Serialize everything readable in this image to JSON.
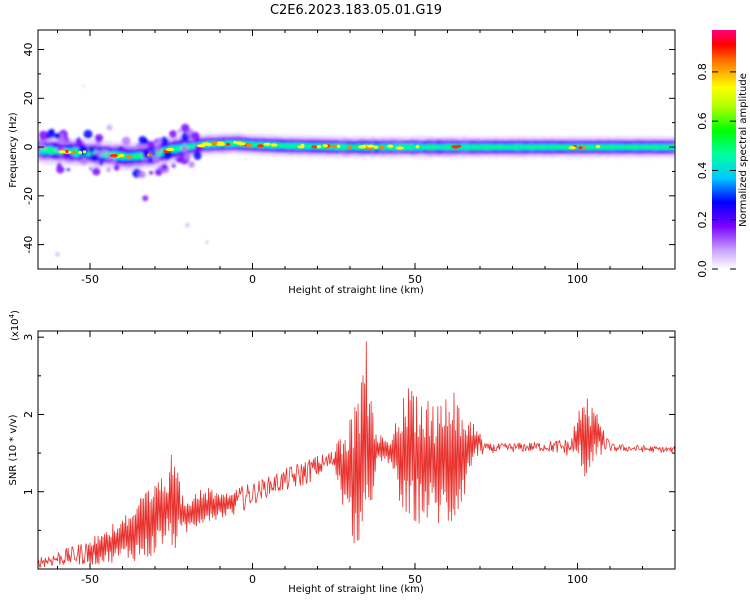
{
  "title": "C2E6.2023.183.05.01.G19",
  "chart_data": [
    {
      "type": "heatmap",
      "xlabel": "Height of straight line (km)",
      "ylabel": "Frequency (Hz)",
      "xlim": [
        -66,
        130
      ],
      "ylim": [
        -50,
        48
      ],
      "xticks": [
        -50,
        0,
        50,
        100
      ],
      "yticks": [
        -40,
        -20,
        0,
        20,
        40
      ],
      "ridge": [
        {
          "x": -66,
          "y": -1
        },
        {
          "x": -55,
          "y": -2
        },
        {
          "x": -45,
          "y": -3
        },
        {
          "x": -38,
          "y": -4
        },
        {
          "x": -30,
          "y": -3
        },
        {
          "x": -25,
          "y": -1
        },
        {
          "x": -15,
          "y": 1
        },
        {
          "x": -5,
          "y": 1.5
        },
        {
          "x": 0,
          "y": 1
        },
        {
          "x": 10,
          "y": 0.5
        },
        {
          "x": 30,
          "y": 0
        },
        {
          "x": 60,
          "y": 0
        },
        {
          "x": 100,
          "y": 0
        },
        {
          "x": 130,
          "y": 0
        }
      ],
      "colorbar": {
        "label": "Normalized spectral amplitude",
        "range": [
          0,
          0.97
        ],
        "ticks": [
          "0.0",
          "0.2",
          "0.4",
          "0.6",
          "0.8"
        ]
      }
    },
    {
      "type": "line",
      "xlabel": "Height of straight line (km)",
      "ylabel": "SNR (10 * v/v)",
      "y_scale_label": "(x10",
      "y_scale_exponent": "4",
      "y_scale_suffix": ")",
      "xlim": [
        -66,
        130
      ],
      "ylim": [
        0,
        3.08
      ],
      "xticks": [
        -50,
        0,
        50,
        100
      ],
      "yticks": [
        1,
        2,
        3
      ],
      "color": "#e8302c",
      "envelope": [
        {
          "x": -66,
          "low": 0.02,
          "high": 0.16
        },
        {
          "x": -55,
          "low": 0.05,
          "high": 0.3
        },
        {
          "x": -48,
          "low": 0.05,
          "high": 0.45
        },
        {
          "x": -40,
          "low": 0.1,
          "high": 0.7
        },
        {
          "x": -32,
          "low": 0.1,
          "high": 1.05
        },
        {
          "x": -26,
          "low": 0.35,
          "high": 1.25
        },
        {
          "x": -24,
          "low": 0.2,
          "high": 1.78
        },
        {
          "x": -22,
          "low": 0.4,
          "high": 0.95
        },
        {
          "x": -15,
          "low": 0.6,
          "high": 1.05
        },
        {
          "x": -5,
          "low": 0.7,
          "high": 1.05
        },
        {
          "x": 5,
          "low": 0.95,
          "high": 1.2
        },
        {
          "x": 15,
          "low": 1.05,
          "high": 1.4
        },
        {
          "x": 25,
          "low": 1.3,
          "high": 1.55
        },
        {
          "x": 30,
          "low": 0.4,
          "high": 1.95
        },
        {
          "x": 33,
          "low": 0.15,
          "high": 2.25
        },
        {
          "x": 35,
          "low": 0.05,
          "high": 3.05
        },
        {
          "x": 38,
          "low": 1.35,
          "high": 1.75
        },
        {
          "x": 43,
          "low": 1.3,
          "high": 1.75
        },
        {
          "x": 47,
          "low": 0.5,
          "high": 2.35
        },
        {
          "x": 52,
          "low": 0.6,
          "high": 2.3
        },
        {
          "x": 57,
          "low": 0.55,
          "high": 2.15
        },
        {
          "x": 61,
          "low": 0.45,
          "high": 2.6
        },
        {
          "x": 65,
          "low": 0.9,
          "high": 2.1
        },
        {
          "x": 68,
          "low": 1.4,
          "high": 1.9
        },
        {
          "x": 72,
          "low": 1.5,
          "high": 1.62
        },
        {
          "x": 90,
          "low": 1.52,
          "high": 1.65
        },
        {
          "x": 98,
          "low": 1.45,
          "high": 1.7
        },
        {
          "x": 101,
          "low": 1.35,
          "high": 2.2
        },
        {
          "x": 103,
          "low": 1.05,
          "high": 2.25
        },
        {
          "x": 106,
          "low": 1.45,
          "high": 2.1
        },
        {
          "x": 110,
          "low": 1.52,
          "high": 1.62
        },
        {
          "x": 130,
          "low": 1.5,
          "high": 1.58
        }
      ]
    }
  ]
}
